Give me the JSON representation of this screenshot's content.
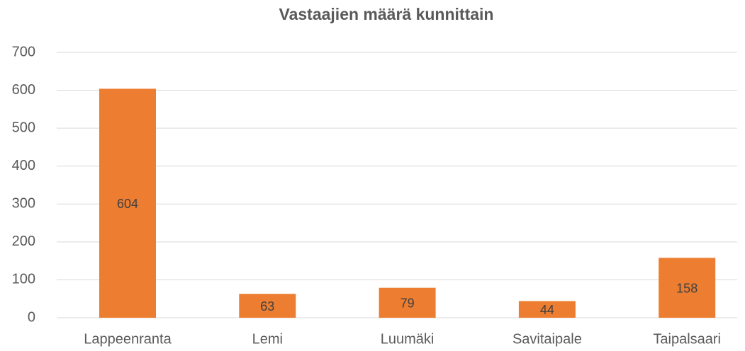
{
  "chart_data": {
    "type": "bar",
    "title": "Vastaajien määrä kunnittain",
    "categories": [
      "Lappeenranta",
      "Lemi",
      "Luumäki",
      "Savitaipale",
      "Taipalsaari"
    ],
    "values": [
      604,
      63,
      79,
      44,
      158
    ],
    "color": "#ed7d31",
    "ylim": [
      0,
      700
    ],
    "yticks": [
      0,
      100,
      200,
      300,
      400,
      500,
      600,
      700
    ],
    "grid": true
  }
}
